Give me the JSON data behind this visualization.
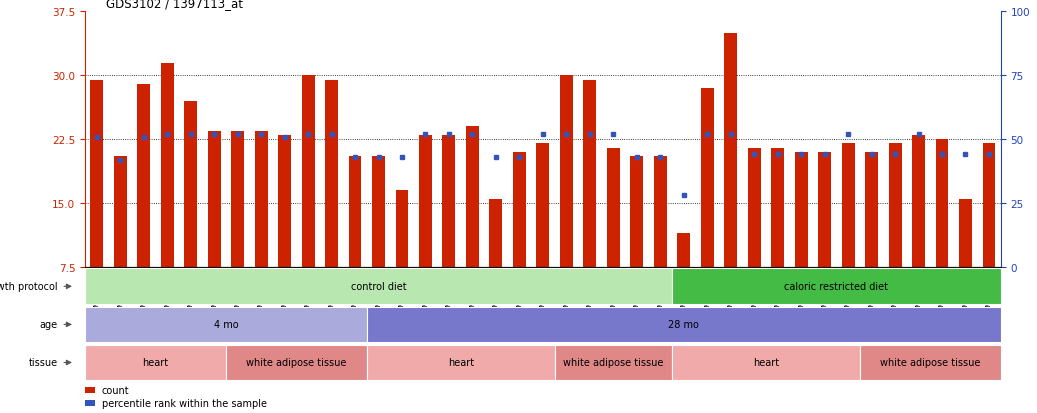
{
  "title": "GDS3102 / 1397113_at",
  "samples": [
    "GSM154903",
    "GSM154904",
    "GSM154905",
    "GSM154906",
    "GSM154907",
    "GSM154908",
    "GSM154920",
    "GSM154921",
    "GSM154922",
    "GSM154924",
    "GSM154925",
    "GSM154932",
    "GSM154933",
    "GSM154896",
    "GSM154897",
    "GSM154898",
    "GSM154899",
    "GSM154900",
    "GSM154901",
    "GSM154902",
    "GSM154918",
    "GSM154919",
    "GSM154929",
    "GSM154930",
    "GSM154931",
    "GSM154909",
    "GSM154910",
    "GSM154911",
    "GSM154912",
    "GSM154913",
    "GSM154914",
    "GSM154915",
    "GSM154916",
    "GSM154917",
    "GSM154923",
    "GSM154926",
    "GSM154927",
    "GSM154928",
    "GSM154934"
  ],
  "counts": [
    29.5,
    20.5,
    29.0,
    31.5,
    27.0,
    23.5,
    23.5,
    23.5,
    23.0,
    30.0,
    29.5,
    20.5,
    20.5,
    16.5,
    23.0,
    23.0,
    24.0,
    15.5,
    21.0,
    22.0,
    30.0,
    29.5,
    21.5,
    20.5,
    20.5,
    11.5,
    28.5,
    35.0,
    21.5,
    21.5,
    21.0,
    21.0,
    22.0,
    21.0,
    22.0,
    23.0,
    22.5,
    15.5,
    22.0
  ],
  "percentiles": [
    51,
    42,
    51,
    52,
    52,
    52,
    52,
    52,
    51,
    52,
    52,
    43,
    43,
    43,
    52,
    52,
    52,
    43,
    43,
    52,
    52,
    52,
    52,
    43,
    43,
    28,
    52,
    52,
    44,
    44,
    44,
    44,
    52,
    44,
    44,
    52,
    44,
    44,
    44
  ],
  "bar_color": "#cc2200",
  "dot_color": "#3355bb",
  "ylim_left": [
    7.5,
    37.5
  ],
  "ylim_right": [
    0,
    100
  ],
  "yticks_left": [
    7.5,
    15.0,
    22.5,
    30.0,
    37.5
  ],
  "yticks_right": [
    0,
    25,
    50,
    75,
    100
  ],
  "hlines": [
    15.0,
    22.5,
    30.0
  ],
  "growth_protocol_groups": [
    {
      "label": "control diet",
      "start": 0,
      "end": 25,
      "color": "#b8e8b0"
    },
    {
      "label": "caloric restricted diet",
      "start": 25,
      "end": 39,
      "color": "#44bb44"
    }
  ],
  "age_groups": [
    {
      "label": "4 mo",
      "start": 0,
      "end": 12,
      "color": "#aaaadd"
    },
    {
      "label": "28 mo",
      "start": 12,
      "end": 39,
      "color": "#7777cc"
    }
  ],
  "tissue_groups": [
    {
      "label": "heart",
      "start": 0,
      "end": 6,
      "color": "#f0aaaa"
    },
    {
      "label": "white adipose tissue",
      "start": 6,
      "end": 12,
      "color": "#e08888"
    },
    {
      "label": "heart",
      "start": 12,
      "end": 20,
      "color": "#f0aaaa"
    },
    {
      "label": "white adipose tissue",
      "start": 20,
      "end": 25,
      "color": "#e08888"
    },
    {
      "label": "heart",
      "start": 25,
      "end": 33,
      "color": "#f0aaaa"
    },
    {
      "label": "white adipose tissue",
      "start": 33,
      "end": 39,
      "color": "#e08888"
    }
  ],
  "row_labels": [
    "growth protocol",
    "age",
    "tissue"
  ],
  "legend_items": [
    {
      "color": "#cc2200",
      "label": "count"
    },
    {
      "color": "#3355bb",
      "label": "percentile rank within the sample"
    }
  ],
  "background_color": "#ffffff"
}
